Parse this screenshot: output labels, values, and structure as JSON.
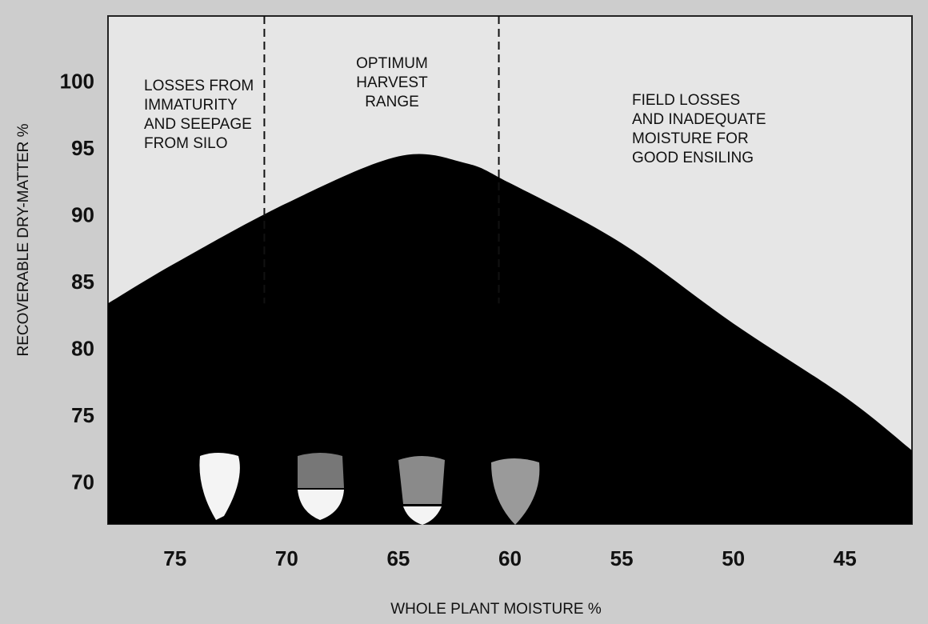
{
  "chart_data": {
    "type": "area",
    "xlabel": "WHOLE PLANT MOISTURE %",
    "ylabel": "RECOVERABLE DRY-MATTER %",
    "x": [
      78,
      75,
      70,
      65,
      62,
      60,
      55,
      50,
      45,
      42
    ],
    "values": [
      83.5,
      86.5,
      91,
      94.5,
      94,
      92.5,
      88,
      82,
      76.5,
      72.5
    ],
    "color": "#000000",
    "xlim": [
      78,
      42
    ],
    "ylim": [
      67,
      105
    ],
    "xticks": [
      75,
      70,
      65,
      60,
      55,
      50,
      45
    ],
    "yticks": [
      70,
      75,
      80,
      85,
      90,
      95,
      100
    ],
    "vlines": [
      71,
      60.5
    ],
    "annotations": [
      [
        "LOSSES FROM",
        "IMMATURITY",
        "AND SEEPAGE",
        "FROM SILO"
      ],
      [
        "OPTIMUM",
        "HARVEST",
        "RANGE"
      ],
      [
        "FIELD LOSSES",
        "AND INADEQUATE",
        "MOISTURE FOR",
        "GOOD ENSILING"
      ]
    ]
  }
}
